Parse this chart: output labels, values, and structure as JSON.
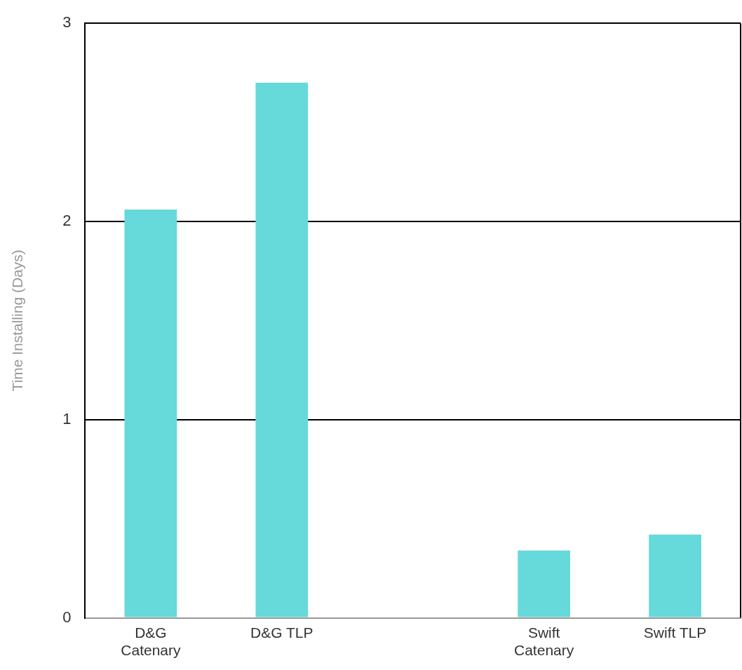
{
  "chart_data": {
    "type": "bar",
    "ylabel": "Time Installing (Days)",
    "categories": [
      "D&G Catenary",
      "D&G TLP",
      null,
      "Swift Catenary",
      "Swift TLP"
    ],
    "values": [
      2.06,
      2.7,
      null,
      0.34,
      0.42
    ],
    "color": "#66d9da",
    "ylim": [
      0,
      3
    ],
    "yticks": [
      0,
      1,
      2,
      3
    ],
    "grid": "y"
  }
}
